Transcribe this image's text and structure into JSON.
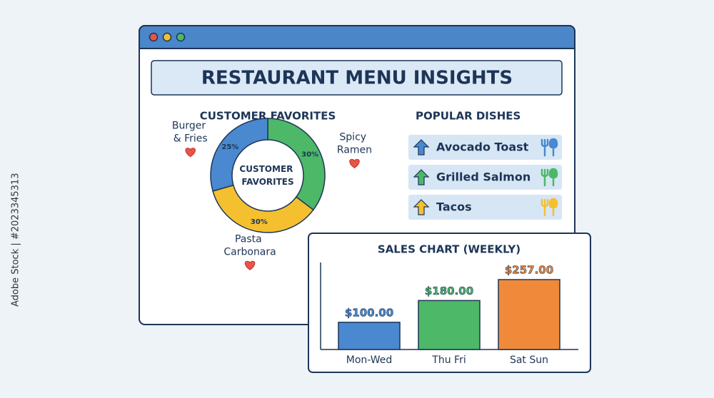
{
  "window": {
    "title": "RESTAURANT MENU INSIGHTS"
  },
  "chart_data": [
    {
      "type": "pie",
      "donut": true,
      "title": "CUSTOMER FAVORITES",
      "center_label": "CUSTOMER FAVORITES",
      "categories": [
        "Spicy Ramen",
        "Pasta Carbonara",
        "Burger & Fries"
      ],
      "values": [
        30,
        30,
        25
      ],
      "value_labels": [
        "30%",
        "30%",
        "25%"
      ],
      "colors": [
        "#4db867",
        "#f5c02f",
        "#4a89d0"
      ]
    },
    {
      "type": "bar",
      "title": "SALES CHART (WEEKLY)",
      "categories": [
        "Mon-Wed",
        "Thu Fri",
        "Sat Sun"
      ],
      "values": [
        100,
        180,
        257
      ],
      "value_labels": [
        "$100.00",
        "$180.00",
        "$257.00"
      ],
      "colors": [
        "#4a89d0",
        "#4db867",
        "#f08a3a"
      ]
    }
  ],
  "popular_dishes": {
    "title": "POPULAR DISHES",
    "items": [
      "Avocado Toast",
      "Grilled Salmon",
      "Tacos"
    ],
    "colors": [
      "#4a89d0",
      "#4db867",
      "#f5c02f"
    ]
  },
  "side_label": "Adobe Stock | #2023345313"
}
